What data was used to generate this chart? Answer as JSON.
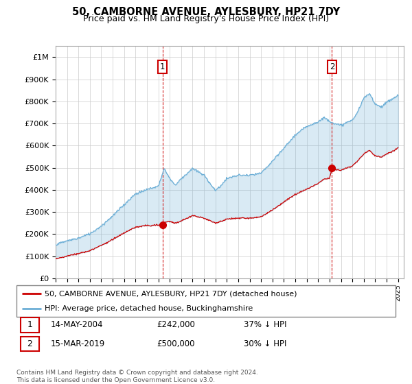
{
  "title": "50, CAMBORNE AVENUE, AYLESBURY, HP21 7DY",
  "subtitle": "Price paid vs. HM Land Registry's House Price Index (HPI)",
  "hpi_label": "HPI: Average price, detached house, Buckinghamshire",
  "property_label": "50, CAMBORNE AVENUE, AYLESBURY, HP21 7DY (detached house)",
  "hpi_color": "#6baed6",
  "hpi_fill_color": "#ddeeff",
  "property_color": "#cc0000",
  "marker_color": "#cc0000",
  "vline_color": "#cc0000",
  "annotation1": {
    "num": "1",
    "date": "14-MAY-2004",
    "price": "£242,000",
    "note": "37% ↓ HPI"
  },
  "annotation2": {
    "num": "2",
    "date": "15-MAR-2019",
    "price": "£500,000",
    "note": "30% ↓ HPI"
  },
  "footer": "Contains HM Land Registry data © Crown copyright and database right 2024.\nThis data is licensed under the Open Government Licence v3.0.",
  "ylim": [
    0,
    1050000
  ],
  "yticks": [
    0,
    100000,
    200000,
    300000,
    400000,
    500000,
    600000,
    700000,
    800000,
    900000,
    1000000
  ],
  "ytick_labels": [
    "£0",
    "£100K",
    "£200K",
    "£300K",
    "£400K",
    "£500K",
    "£600K",
    "£700K",
    "£800K",
    "£900K",
    "£1M"
  ],
  "purchase1_year": 2004.37,
  "purchase1_price": 242000,
  "purchase2_year": 2019.21,
  "purchase2_price": 500000,
  "background_color": "#ffffff",
  "grid_color": "#cccccc"
}
